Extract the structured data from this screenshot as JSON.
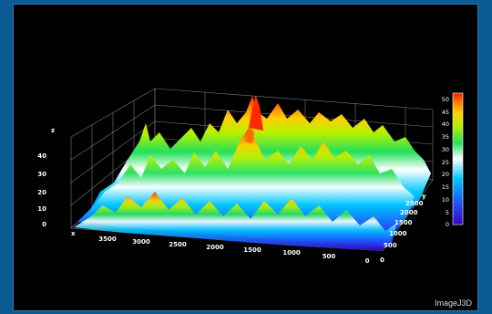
{
  "viewer": {
    "watermark": "ImageJ3D"
  },
  "plot": {
    "axis_names": {
      "x": "x",
      "y": "y",
      "z": "z"
    },
    "x_ticks": [
      "3500",
      "3000",
      "2500",
      "2000",
      "1500",
      "1000",
      "500",
      "0"
    ],
    "y_ticks": [
      "0",
      "500",
      "1000",
      "1500",
      "2000",
      "2500"
    ],
    "z_ticks": [
      "0",
      "10",
      "20",
      "30",
      "40"
    ],
    "colorbar_ticks": [
      "0",
      "5",
      "10",
      "15",
      "20",
      "25",
      "30",
      "35",
      "40",
      "45",
      "50"
    ],
    "colorbar_range": [
      0,
      52
    ],
    "colormap": [
      "#3a00c8",
      "#1e5dff",
      "#00c8ff",
      "#ffffff",
      "#22e05a",
      "#b7f000",
      "#ffd000",
      "#ff7a00",
      "#ff1a00"
    ],
    "background": "#000000",
    "frame_color": "#0a5b93"
  }
}
